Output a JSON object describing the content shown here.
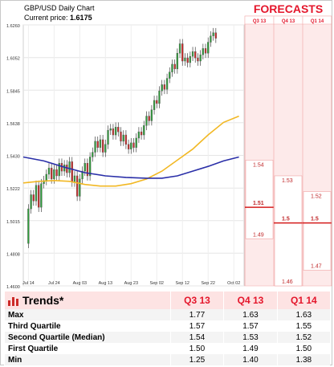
{
  "chart_data": {
    "type": "candlestick",
    "title": "GBP/USD Daily Chart",
    "current_price_label": "Current price:",
    "current_price": "1.6175",
    "y_ticks": [
      1.46,
      1.4808,
      1.5015,
      1.5222,
      1.543,
      1.5638,
      1.5845,
      1.6052,
      1.626
    ],
    "y_tick_labels": [
      "1.4600",
      "1.4808",
      "1.5015",
      "1.5222",
      "1.5430",
      "1.5638",
      "1.5845",
      "1.6052",
      "1.6260"
    ],
    "ylim": [
      1.46,
      1.626
    ],
    "x_tick_labels": [
      "Jul 14",
      "Jul 24",
      "Aug 03",
      "Aug 13",
      "Aug 23",
      "Sep 02",
      "Sep 12",
      "Sep 22",
      "Oct 02"
    ],
    "x_tick_days": [
      0,
      10,
      20,
      30,
      40,
      50,
      60,
      70,
      80
    ],
    "xlim": [
      -2,
      84
    ],
    "candles": [
      [
        0,
        1.487,
        1.509
      ],
      [
        1,
        1.509,
        1.518
      ],
      [
        2,
        1.518,
        1.514
      ],
      [
        3,
        1.514,
        1.524
      ],
      [
        4,
        1.524,
        1.51
      ],
      [
        5,
        1.51,
        1.525
      ],
      [
        6,
        1.525,
        1.527
      ],
      [
        7,
        1.527,
        1.531
      ],
      [
        8,
        1.531,
        1.535
      ],
      [
        9,
        1.535,
        1.528
      ],
      [
        10,
        1.528,
        1.534
      ],
      [
        11,
        1.534,
        1.53
      ],
      [
        12,
        1.53,
        1.538
      ],
      [
        13,
        1.538,
        1.533
      ],
      [
        14,
        1.533,
        1.537
      ],
      [
        15,
        1.537,
        1.532
      ],
      [
        16,
        1.532,
        1.539
      ],
      [
        17,
        1.539,
        1.526
      ],
      [
        18,
        1.526,
        1.53
      ],
      [
        19,
        1.53,
        1.517
      ],
      [
        20,
        1.517,
        1.528
      ],
      [
        21,
        1.528,
        1.533
      ],
      [
        22,
        1.533,
        1.538
      ],
      [
        23,
        1.538,
        1.53
      ],
      [
        24,
        1.53,
        1.542
      ],
      [
        25,
        1.542,
        1.545
      ],
      [
        26,
        1.545,
        1.552
      ],
      [
        27,
        1.552,
        1.548
      ],
      [
        28,
        1.548,
        1.553
      ],
      [
        29,
        1.553,
        1.545
      ],
      [
        30,
        1.545,
        1.55
      ],
      [
        31,
        1.55,
        1.559
      ],
      [
        32,
        1.559,
        1.56
      ],
      [
        33,
        1.56,
        1.556
      ],
      [
        34,
        1.556,
        1.561
      ],
      [
        35,
        1.561,
        1.558
      ],
      [
        36,
        1.558,
        1.552
      ],
      [
        37,
        1.552,
        1.556
      ],
      [
        38,
        1.556,
        1.55
      ],
      [
        39,
        1.55,
        1.547
      ],
      [
        40,
        1.547,
        1.551
      ],
      [
        41,
        1.551,
        1.548
      ],
      [
        42,
        1.548,
        1.554
      ],
      [
        43,
        1.554,
        1.558
      ],
      [
        44,
        1.558,
        1.556
      ],
      [
        45,
        1.556,
        1.562
      ],
      [
        46,
        1.562,
        1.568
      ],
      [
        47,
        1.568,
        1.565
      ],
      [
        48,
        1.565,
        1.572
      ],
      [
        49,
        1.572,
        1.578
      ],
      [
        50,
        1.578,
        1.576
      ],
      [
        51,
        1.576,
        1.584
      ],
      [
        52,
        1.584,
        1.588
      ],
      [
        53,
        1.588,
        1.585
      ],
      [
        54,
        1.585,
        1.592
      ],
      [
        55,
        1.592,
        1.596
      ],
      [
        56,
        1.596,
        1.601
      ],
      [
        57,
        1.601,
        1.598
      ],
      [
        58,
        1.598,
        1.608
      ],
      [
        59,
        1.608,
        1.614
      ],
      [
        60,
        1.614,
        1.603
      ],
      [
        61,
        1.603,
        1.605
      ],
      [
        62,
        1.605,
        1.602
      ],
      [
        63,
        1.602,
        1.606
      ],
      [
        64,
        1.606,
        1.609
      ],
      [
        65,
        1.609,
        1.605
      ],
      [
        66,
        1.605,
        1.603
      ],
      [
        67,
        1.603,
        1.607
      ],
      [
        68,
        1.607,
        1.611
      ],
      [
        69,
        1.611,
        1.608
      ],
      [
        70,
        1.608,
        1.615
      ],
      [
        71,
        1.615,
        1.619
      ],
      [
        72,
        1.619,
        1.621
      ],
      [
        73,
        1.621,
        1.6175
      ]
    ],
    "sma_slow": [
      [
        -2,
        1.542
      ],
      [
        6,
        1.5395
      ],
      [
        14,
        1.5355
      ],
      [
        22,
        1.532
      ],
      [
        30,
        1.53
      ],
      [
        38,
        1.529
      ],
      [
        46,
        1.5285
      ],
      [
        52,
        1.5285
      ],
      [
        58,
        1.53
      ],
      [
        64,
        1.533
      ],
      [
        70,
        1.536
      ],
      [
        76,
        1.5395
      ],
      [
        82,
        1.542
      ]
    ],
    "sma_fast": [
      [
        -2,
        1.5255
      ],
      [
        4,
        1.5265
      ],
      [
        10,
        1.527
      ],
      [
        16,
        1.5265
      ],
      [
        22,
        1.5245
      ],
      [
        28,
        1.5235
      ],
      [
        34,
        1.5235
      ],
      [
        40,
        1.525
      ],
      [
        46,
        1.528
      ],
      [
        52,
        1.533
      ],
      [
        58,
        1.54
      ],
      [
        64,
        1.547
      ],
      [
        70,
        1.556
      ],
      [
        76,
        1.564
      ],
      [
        82,
        1.568
      ]
    ],
    "colors": {
      "up": "#2e9e3a",
      "down": "#cc2a28",
      "sma_slow": "#2a2fa8",
      "sma_fast": "#f2b824",
      "accent": "#e4162b"
    }
  },
  "forecasts": {
    "title": "FORECASTS",
    "columns": [
      {
        "label": "Q3 13",
        "max": 1.54,
        "median": 1.51,
        "min": 1.49,
        "max_label": "1.54",
        "median_label": "1.51",
        "min_label": "1.49"
      },
      {
        "label": "Q4 13",
        "max": 1.53,
        "median": 1.5,
        "min": 1.46,
        "max_label": "1.53",
        "median_label": "1.5",
        "min_label": "1.46"
      },
      {
        "label": "Q1 14",
        "max": 1.52,
        "median": 1.5,
        "min": 1.47,
        "max_label": "1.52",
        "median_label": "1.5",
        "min_label": "1.47"
      }
    ]
  },
  "trends": {
    "title": "Trends*",
    "headers": [
      "Q3 13",
      "Q4 13",
      "Q1 14"
    ],
    "rows": [
      {
        "label": "Max",
        "values": [
          "1.77",
          "1.63",
          "1.63"
        ]
      },
      {
        "label": "Third Quartile",
        "values": [
          "1.57",
          "1.57",
          "1.55"
        ]
      },
      {
        "label": "Second Quartile (Median)",
        "values": [
          "1.54",
          "1.53",
          "1.52"
        ]
      },
      {
        "label": "First Quartile",
        "values": [
          "1.50",
          "1.49",
          "1.50"
        ]
      },
      {
        "label": "Min",
        "values": [
          "1.25",
          "1.40",
          "1.38"
        ]
      }
    ]
  }
}
